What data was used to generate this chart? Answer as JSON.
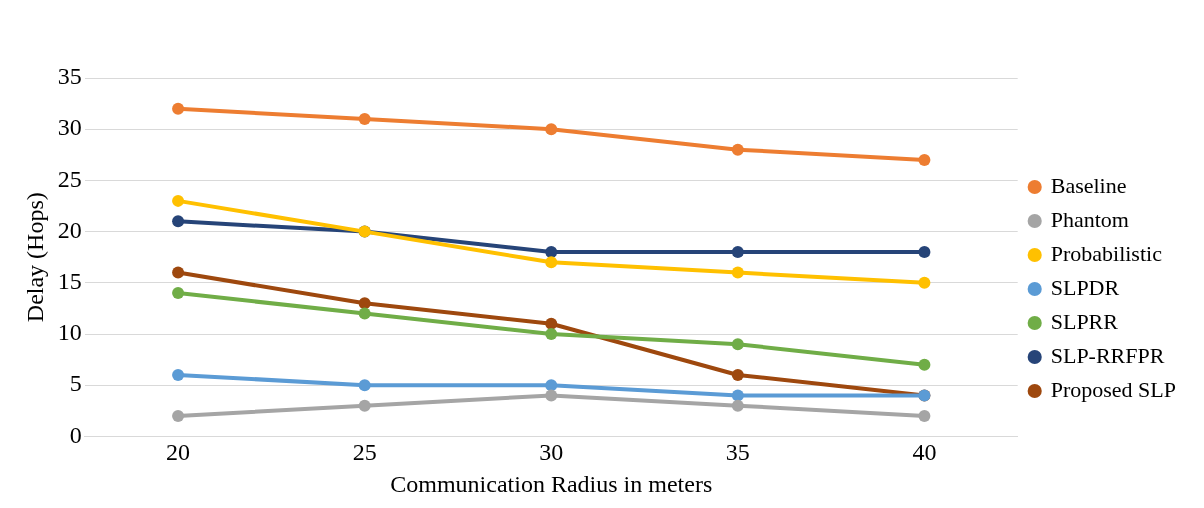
{
  "chart_data": {
    "type": "line",
    "xlabel": "Communication Radius in meters",
    "ylabel": "Delay (Hops)",
    "categories": [
      "20",
      "25",
      "30",
      "35",
      "40"
    ],
    "series": [
      {
        "name": "Baseline",
        "color": "#ed7d31",
        "values": [
          32,
          31,
          30,
          28,
          27
        ]
      },
      {
        "name": "Phantom",
        "color": "#a5a5a5",
        "values": [
          2,
          3,
          4,
          3,
          2
        ]
      },
      {
        "name": "Probabilistic",
        "color": "#ffc000",
        "values": [
          23,
          20,
          17,
          16,
          15
        ]
      },
      {
        "name": "SLPDR",
        "color": "#5b9bd5",
        "values": [
          6,
          5,
          5,
          4,
          4
        ]
      },
      {
        "name": "SLPRR",
        "color": "#70ad47",
        "values": [
          14,
          12,
          10,
          9,
          7
        ]
      },
      {
        "name": "SLP-RRFPR",
        "color": "#264478",
        "values": [
          21,
          20,
          18,
          18,
          18
        ]
      },
      {
        "name": "Proposed SLP",
        "color": "#9e480e",
        "values": [
          16,
          13,
          11,
          6,
          4
        ]
      }
    ],
    "ylim": [
      0,
      35
    ],
    "yticks": [
      0,
      5,
      10,
      15,
      20,
      25,
      30,
      35
    ],
    "grid": "y",
    "legend": "right",
    "marker": "circle",
    "line_style": "solid"
  }
}
